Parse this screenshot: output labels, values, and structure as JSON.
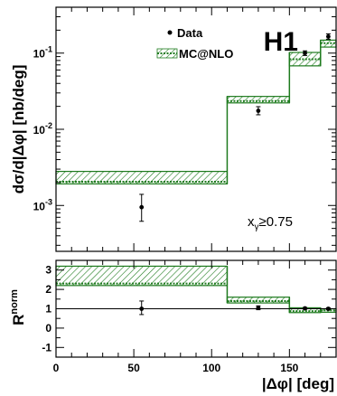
{
  "chart_data": [
    {
      "type": "line",
      "ylabel": "dσ/d|Δφ| [nb/deg]",
      "xlabel": "",
      "experiment": "H1",
      "annotation": {
        "text": "x",
        "sub": "γ",
        "rest": "≥0.75"
      },
      "xlim": [
        0,
        180
      ],
      "ylim": [
        0.00025,
        0.4
      ],
      "yscale": "log",
      "yticks": [
        {
          "value": 0.001,
          "base": "10",
          "exp": "-3"
        },
        {
          "value": 0.01,
          "base": "10",
          "exp": "-2"
        },
        {
          "value": 0.1,
          "base": "10",
          "exp": "-1"
        }
      ],
      "legend": {
        "position": "top-center",
        "entries": [
          {
            "label": "Data",
            "symbol": "marker"
          },
          {
            "label": "MC@NLO",
            "symbol": "hatched-band"
          }
        ]
      },
      "series": [
        {
          "name": "Data",
          "kind": "points",
          "points": [
            {
              "x": 55,
              "y": 0.00095,
              "ylo": 0.00062,
              "yhi": 0.0014
            },
            {
              "x": 130,
              "y": 0.0175,
              "ylo": 0.0155,
              "yhi": 0.0198
            },
            {
              "x": 160,
              "y": 0.1,
              "ylo": 0.093,
              "yhi": 0.107
            },
            {
              "x": 175,
              "y": 0.165,
              "ylo": 0.152,
              "yhi": 0.179
            }
          ]
        },
        {
          "name": "MC@NLO",
          "kind": "band",
          "bins": [
            {
              "x0": 0,
              "x1": 110,
              "central": 0.00205,
              "lo": 0.00192,
              "hi": 0.0028
            },
            {
              "x0": 110,
              "x1": 150,
              "central": 0.0235,
              "lo": 0.0222,
              "hi": 0.027
            },
            {
              "x0": 150,
              "x1": 170,
              "central": 0.083,
              "lo": 0.068,
              "hi": 0.102
            },
            {
              "x0": 170,
              "x1": 180,
              "central": 0.135,
              "lo": 0.12,
              "hi": 0.148
            }
          ]
        }
      ]
    },
    {
      "type": "line",
      "ylabel": "R",
      "ylabel_sup": "norm",
      "xlabel": "|Δφ| [deg]",
      "xlim": [
        0,
        180
      ],
      "ylim": [
        -1.5,
        3.5
      ],
      "xticks": [
        0,
        50,
        100,
        150
      ],
      "yticks": [
        -1,
        0,
        1,
        2,
        3
      ],
      "reference_line": 1,
      "series": [
        {
          "name": "Data",
          "kind": "points",
          "points": [
            {
              "x": 55,
              "y": 1.0,
              "ylo": 0.7,
              "yhi": 1.4
            },
            {
              "x": 130,
              "y": 1.05,
              "ylo": 0.95,
              "yhi": 1.15
            },
            {
              "x": 160,
              "y": 1.02,
              "ylo": 0.97,
              "yhi": 1.07
            },
            {
              "x": 175,
              "y": 1.0,
              "ylo": 0.95,
              "yhi": 1.05
            }
          ]
        },
        {
          "name": "MC@NLO",
          "kind": "band",
          "bins": [
            {
              "x0": 0,
              "x1": 110,
              "central": 2.3,
              "lo": 2.2,
              "hi": 3.2
            },
            {
              "x0": 110,
              "x1": 150,
              "central": 1.4,
              "lo": 1.3,
              "hi": 1.6
            },
            {
              "x0": 150,
              "x1": 170,
              "central": 0.88,
              "lo": 0.8,
              "hi": 1.05
            },
            {
              "x0": 170,
              "x1": 180,
              "central": 0.92,
              "lo": 0.82,
              "hi": 1.0
            }
          ]
        }
      ]
    }
  ],
  "colors": {
    "band_fill": "#ffffff",
    "band_hatch": "#1d7a1d",
    "band_line": "#1d7a1d",
    "axis": "#000000",
    "data": "#000000"
  }
}
